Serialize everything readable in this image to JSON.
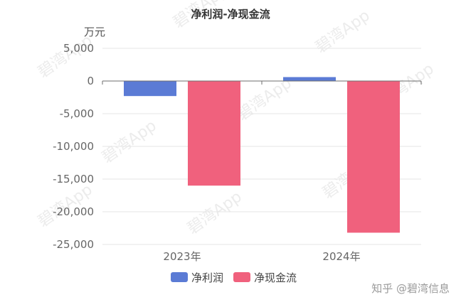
{
  "chart_data": {
    "type": "bar",
    "title": "净利润-净现金流",
    "unit_label": "万元",
    "categories": [
      "2023年",
      "2024年"
    ],
    "series": [
      {
        "name": "净利润",
        "color": "#5b7bd5",
        "values": [
          -2300,
          600
        ]
      },
      {
        "name": "净现金流",
        "color": "#f0617d",
        "values": [
          -16000,
          -23200
        ]
      }
    ],
    "ylim": [
      -25000,
      5000
    ],
    "yticks": [
      5000,
      0,
      -5000,
      -10000,
      -15000,
      -20000,
      -25000
    ],
    "ytick_labels": [
      "5,000",
      "0",
      "-5,000",
      "-10,000",
      "-15,000",
      "-20,000",
      "-25,000"
    ],
    "grid": true,
    "legend_position": "bottom"
  },
  "watermark": {
    "tiled_text": "碧湾App",
    "corner_text": "知乎 @碧湾信息"
  }
}
